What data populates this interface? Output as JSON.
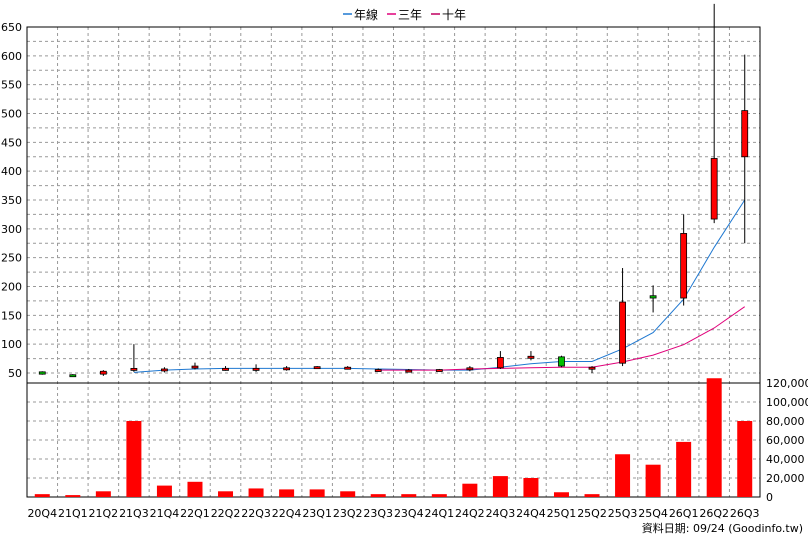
{
  "chart_data": {
    "type": "candlestick",
    "legend": [
      "年線",
      "三年",
      "十年"
    ],
    "colors": {
      "year_line": "#1f78d1",
      "three_year": "#e0007a",
      "ten_year": "#c00060",
      "up_candle": "#ff0000",
      "down_candle": "#00c000",
      "volume_bar": "#ff0000",
      "grid": "#999999"
    },
    "x_labels": [
      "20Q4",
      "21Q1",
      "21Q2",
      "21Q3",
      "21Q4",
      "22Q1",
      "22Q2",
      "22Q3",
      "22Q4",
      "23Q1",
      "23Q2",
      "23Q3",
      "23Q4",
      "24Q1",
      "24Q2",
      "24Q3",
      "24Q4",
      "25Q1",
      "25Q2",
      "25Q3",
      "25Q4",
      "26Q1",
      "26Q2",
      "26Q3"
    ],
    "price_axis": {
      "ticks": [
        "50",
        "100",
        "150",
        "200",
        "250",
        "300",
        "350",
        "400",
        "450",
        "500",
        "550",
        "600",
        "650"
      ]
    },
    "volume_axis": {
      "ticks": [
        "0",
        "20,000",
        "40,000",
        "60,000",
        "80,000",
        "100,000",
        "120,000"
      ]
    },
    "candles": [
      {
        "o": 52,
        "c": 48,
        "h": 53,
        "l": 47
      },
      {
        "o": 47,
        "c": 46,
        "h": 48,
        "l": 44
      },
      {
        "o": 48,
        "c": 53,
        "h": 55,
        "l": 45
      },
      {
        "o": 55,
        "c": 58,
        "h": 100,
        "l": 52
      },
      {
        "o": 56,
        "c": 57,
        "h": 60,
        "l": 51
      },
      {
        "o": 60,
        "c": 62,
        "h": 68,
        "l": 56
      },
      {
        "o": 58,
        "c": 58,
        "h": 62,
        "l": 54
      },
      {
        "o": 57,
        "c": 58,
        "h": 65,
        "l": 52
      },
      {
        "o": 58,
        "c": 59,
        "h": 62,
        "l": 54
      },
      {
        "o": 60,
        "c": 61,
        "h": 62,
        "l": 57
      },
      {
        "o": 59,
        "c": 60,
        "h": 62,
        "l": 56
      },
      {
        "o": 55,
        "c": 56,
        "h": 58,
        "l": 52
      },
      {
        "o": 55,
        "c": 55,
        "h": 57,
        "l": 53
      },
      {
        "o": 55,
        "c": 56,
        "h": 57,
        "l": 53
      },
      {
        "o": 56,
        "c": 59,
        "h": 62,
        "l": 53
      },
      {
        "o": 59,
        "c": 77,
        "h": 88,
        "l": 57
      },
      {
        "o": 78,
        "c": 79,
        "h": 88,
        "l": 72
      },
      {
        "o": 78,
        "c": 62,
        "h": 80,
        "l": 60
      },
      {
        "o": 60,
        "c": 60,
        "h": 62,
        "l": 50
      },
      {
        "o": 67,
        "c": 173,
        "h": 232,
        "l": 62
      },
      {
        "o": 184,
        "c": 180,
        "h": 202,
        "l": 155
      },
      {
        "o": 180,
        "c": 292,
        "h": 325,
        "l": 167
      },
      {
        "o": 317,
        "c": 422,
        "h": 690,
        "l": 310
      },
      {
        "o": 425,
        "c": 505,
        "h": 602,
        "l": 275
      }
    ],
    "year_line": [
      null,
      null,
      null,
      51,
      55,
      57,
      58,
      58,
      58,
      58,
      58,
      57,
      56,
      55,
      55,
      60,
      66,
      70,
      70,
      92,
      120,
      178,
      268,
      350
    ],
    "three_year": [
      null,
      null,
      null,
      null,
      null,
      null,
      null,
      null,
      null,
      null,
      null,
      55,
      55,
      55,
      57,
      58,
      59,
      60,
      60,
      69,
      81,
      99,
      128,
      165
    ],
    "volume": [
      3000,
      2000,
      6000,
      80000,
      12000,
      16000,
      6000,
      9000,
      8000,
      8000,
      6000,
      3000,
      3000,
      3000,
      14000,
      22000,
      20000,
      5000,
      3000,
      45000,
      34000,
      58000,
      125000,
      80000
    ],
    "source": "資料日期: 09/24  (Goodinfo.tw)"
  }
}
